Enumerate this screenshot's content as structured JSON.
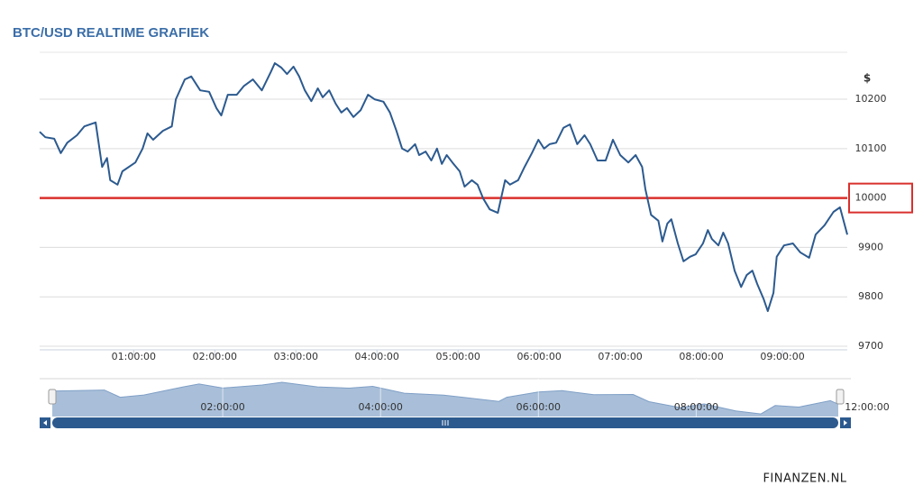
{
  "chart_data": [
    {
      "type": "line",
      "title": "BTC/USD REALTIME GRAFIEK",
      "y_unit": "$",
      "color": "#2c5a8f",
      "grid": true,
      "x": [
        -0.16,
        -0.09,
        0.02,
        0.1,
        0.18,
        0.3,
        0.39,
        0.53,
        0.61,
        0.67,
        0.71,
        0.8,
        0.86,
        1.02,
        1.11,
        1.17,
        1.24,
        1.36,
        1.47,
        1.52,
        1.63,
        1.71,
        1.82,
        1.93,
        2.02,
        2.08,
        2.16,
        2.27,
        2.36,
        2.47,
        2.58,
        2.69,
        2.74,
        2.82,
        2.89,
        2.97,
        3.04,
        3.11,
        3.19,
        3.27,
        3.33,
        3.41,
        3.49,
        3.56,
        3.63,
        3.71,
        3.8,
        3.89,
        3.97,
        4.08,
        4.16,
        4.24,
        4.31,
        4.38,
        4.47,
        4.52,
        4.6,
        4.67,
        4.74,
        4.8,
        4.86,
        4.93,
        5.02,
        5.08,
        5.17,
        5.24,
        5.31,
        5.39,
        5.49,
        5.58,
        5.64,
        5.74,
        5.82,
        5.91,
        5.99,
        6.06,
        6.13,
        6.21,
        6.3,
        6.38,
        6.47,
        6.56,
        6.63,
        6.72,
        6.82,
        6.91,
        7.0,
        7.1,
        7.19,
        7.27,
        7.31,
        7.38,
        7.47,
        7.52,
        7.58,
        7.63,
        7.71,
        7.78,
        7.86,
        7.93,
        8.02,
        8.08,
        8.13,
        8.21,
        8.27,
        8.33,
        8.41,
        8.49,
        8.56,
        8.63,
        8.69,
        8.77,
        8.82,
        8.89,
        8.93,
        9.02,
        9.13,
        9.22,
        9.33,
        9.41,
        9.52,
        9.63,
        9.71,
        9.8
      ],
      "values": [
        10134,
        10123,
        10120,
        10091,
        10112,
        10127,
        10145,
        10153,
        10063,
        10081,
        10036,
        10027,
        10054,
        10072,
        10100,
        10131,
        10118,
        10136,
        10145,
        10200,
        10240,
        10246,
        10218,
        10215,
        10182,
        10167,
        10209,
        10209,
        10227,
        10240,
        10218,
        10255,
        10273,
        10264,
        10251,
        10266,
        10246,
        10218,
        10196,
        10222,
        10204,
        10218,
        10191,
        10173,
        10182,
        10164,
        10178,
        10209,
        10200,
        10195,
        10173,
        10136,
        10100,
        10094,
        10109,
        10087,
        10094,
        10076,
        10100,
        10069,
        10087,
        10072,
        10054,
        10023,
        10036,
        10027,
        9999,
        9977,
        9970,
        10036,
        10027,
        10036,
        10063,
        10091,
        10118,
        10100,
        10109,
        10112,
        10142,
        10149,
        10109,
        10127,
        10109,
        10076,
        10076,
        10118,
        10087,
        10072,
        10087,
        10063,
        10018,
        9966,
        9954,
        9912,
        9948,
        9957,
        9908,
        9872,
        9881,
        9886,
        9908,
        9935,
        9917,
        9904,
        9930,
        9908,
        9853,
        9820,
        9844,
        9853,
        9826,
        9795,
        9771,
        9808,
        9881,
        9904,
        9908,
        9890,
        9879,
        9926,
        9945,
        9972,
        9981,
        9926
      ],
      "xlim": [
        -0.16,
        9.8
      ],
      "xticks": [
        {
          "value": 1,
          "label": "01:00:00"
        },
        {
          "value": 2,
          "label": "02:00:00"
        },
        {
          "value": 3,
          "label": "03:00:00"
        },
        {
          "value": 4,
          "label": "04:00:00"
        },
        {
          "value": 5,
          "label": "05:00:00"
        },
        {
          "value": 6,
          "label": "06:00:00"
        },
        {
          "value": 7,
          "label": "07:00:00"
        },
        {
          "value": 8,
          "label": "08:00:00"
        },
        {
          "value": 9,
          "label": "09:00:00"
        }
      ],
      "ylim": [
        9700,
        10295
      ],
      "yticks": [
        9700,
        9800,
        9900,
        10000,
        10100,
        10200
      ],
      "reference_line": {
        "value": 10000,
        "color": "#d9302c"
      }
    },
    {
      "type": "area",
      "color": "#a9bfd9",
      "line_color": "#7f9fc6",
      "x": [
        -0.16,
        0.5,
        0.7,
        1.0,
        1.5,
        1.7,
        2.0,
        2.5,
        2.75,
        3.2,
        3.6,
        3.9,
        4.3,
        4.8,
        5.3,
        5.5,
        5.6,
        6.0,
        6.3,
        6.7,
        7.2,
        7.4,
        7.8,
        8.1,
        8.5,
        8.82,
        9.0,
        9.3,
        9.7,
        9.8
      ],
      "values": [
        10134,
        10150,
        10036,
        10072,
        10200,
        10246,
        10182,
        10230,
        10273,
        10200,
        10180,
        10209,
        10100,
        10070,
        9999,
        9970,
        10036,
        10118,
        10142,
        10076,
        10080,
        9966,
        9872,
        9930,
        9820,
        9771,
        9904,
        9880,
        9981,
        9926
      ],
      "xlim": [
        -0.16,
        9.8
      ],
      "ylim": [
        9730,
        10330
      ],
      "xticks": [
        {
          "value": 2,
          "label": "02:00:00"
        },
        {
          "value": 4,
          "label": "04:00:00"
        },
        {
          "value": 6,
          "label": "06:00:00"
        },
        {
          "value": 8,
          "label": "08:00:00"
        }
      ],
      "end_label": "12:00:00"
    }
  ],
  "brand": "FINANZEN.NL"
}
